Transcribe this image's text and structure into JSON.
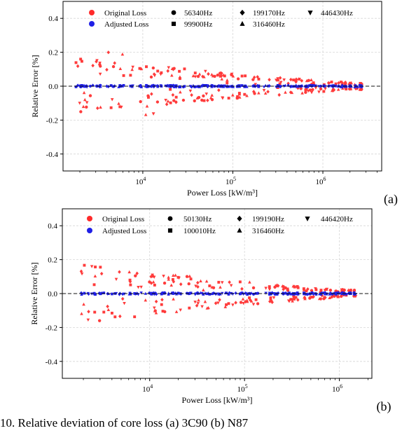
{
  "caption": "10. Relative deviation of core loss (a) 3C90 (b) N87",
  "chart_data": [
    {
      "type": "scatter",
      "panel_label": "(a)",
      "xlabel": "Power Loss [kW/m³]",
      "ylabel": "Relative Error [%]",
      "xscale": "log",
      "xlim": [
        1300,
        4500000
      ],
      "ylim": [
        -0.5,
        0.5
      ],
      "yticks": [
        "-0.4",
        "-0.2",
        "0.0",
        "0.2",
        "0.4"
      ],
      "xticks": [
        {
          "value": 10000,
          "base": "10",
          "exp": "4"
        },
        {
          "value": 100000,
          "base": "10",
          "exp": "5"
        },
        {
          "value": 1000000,
          "base": "10",
          "exp": "6"
        }
      ],
      "grid": true,
      "reference_line": 0,
      "legend_position": "top",
      "legend": {
        "series": [
          {
            "name": "Original Loss",
            "color": "#ff2a2a"
          },
          {
            "name": "Adjusted Loss",
            "color": "#1f1fe6"
          }
        ],
        "markers": [
          {
            "shape": "circle",
            "label": "56340Hz"
          },
          {
            "shape": "square",
            "label": "99900Hz"
          },
          {
            "shape": "diamond",
            "label": "199170Hz"
          },
          {
            "shape": "triangle-up",
            "label": "316460Hz"
          },
          {
            "shape": "triangle-down",
            "label": "446430Hz"
          }
        ]
      },
      "original_envelope": {
        "x_range": [
          1700,
          2800000
        ],
        "max_abs_error": [
          0.15,
          0.02
        ],
        "peak": 0.22
      },
      "adjusted_envelope": {
        "x_range": [
          1700,
          2800000
        ],
        "max_abs_error": 0.005
      }
    },
    {
      "type": "scatter",
      "panel_label": "(b)",
      "xlabel": "Power Loss [kW/m³]",
      "ylabel": "Relative Error [%]",
      "xscale": "log",
      "xlim": [
        1200,
        2200000
      ],
      "ylim": [
        -0.5,
        0.5
      ],
      "yticks": [
        "-0.4",
        "-0.2",
        "0.0",
        "0.2",
        "0.4"
      ],
      "xticks": [
        {
          "value": 10000,
          "base": "10",
          "exp": "4"
        },
        {
          "value": 100000,
          "base": "10",
          "exp": "5"
        },
        {
          "value": 1000000,
          "base": "10",
          "exp": "6"
        }
      ],
      "grid": true,
      "reference_line": 0,
      "legend_position": "top",
      "legend": {
        "series": [
          {
            "name": "Original Loss",
            "color": "#ff2a2a"
          },
          {
            "name": "Adjusted Loss",
            "color": "#1f1fe6"
          }
        ],
        "markers": [
          {
            "shape": "circle",
            "label": "50130Hz"
          },
          {
            "shape": "square",
            "label": "100010Hz"
          },
          {
            "shape": "diamond",
            "label": "199190Hz"
          },
          {
            "shape": "triangle-up",
            "label": "316460Hz"
          },
          {
            "shape": "triangle-down",
            "label": "446420Hz"
          }
        ]
      },
      "original_envelope": {
        "x_range": [
          1600,
          1500000
        ],
        "max_abs_error": [
          0.16,
          0.02
        ],
        "peak": 0.17
      },
      "adjusted_envelope": {
        "x_range": [
          1600,
          1500000
        ],
        "max_abs_error": 0.005
      }
    }
  ]
}
